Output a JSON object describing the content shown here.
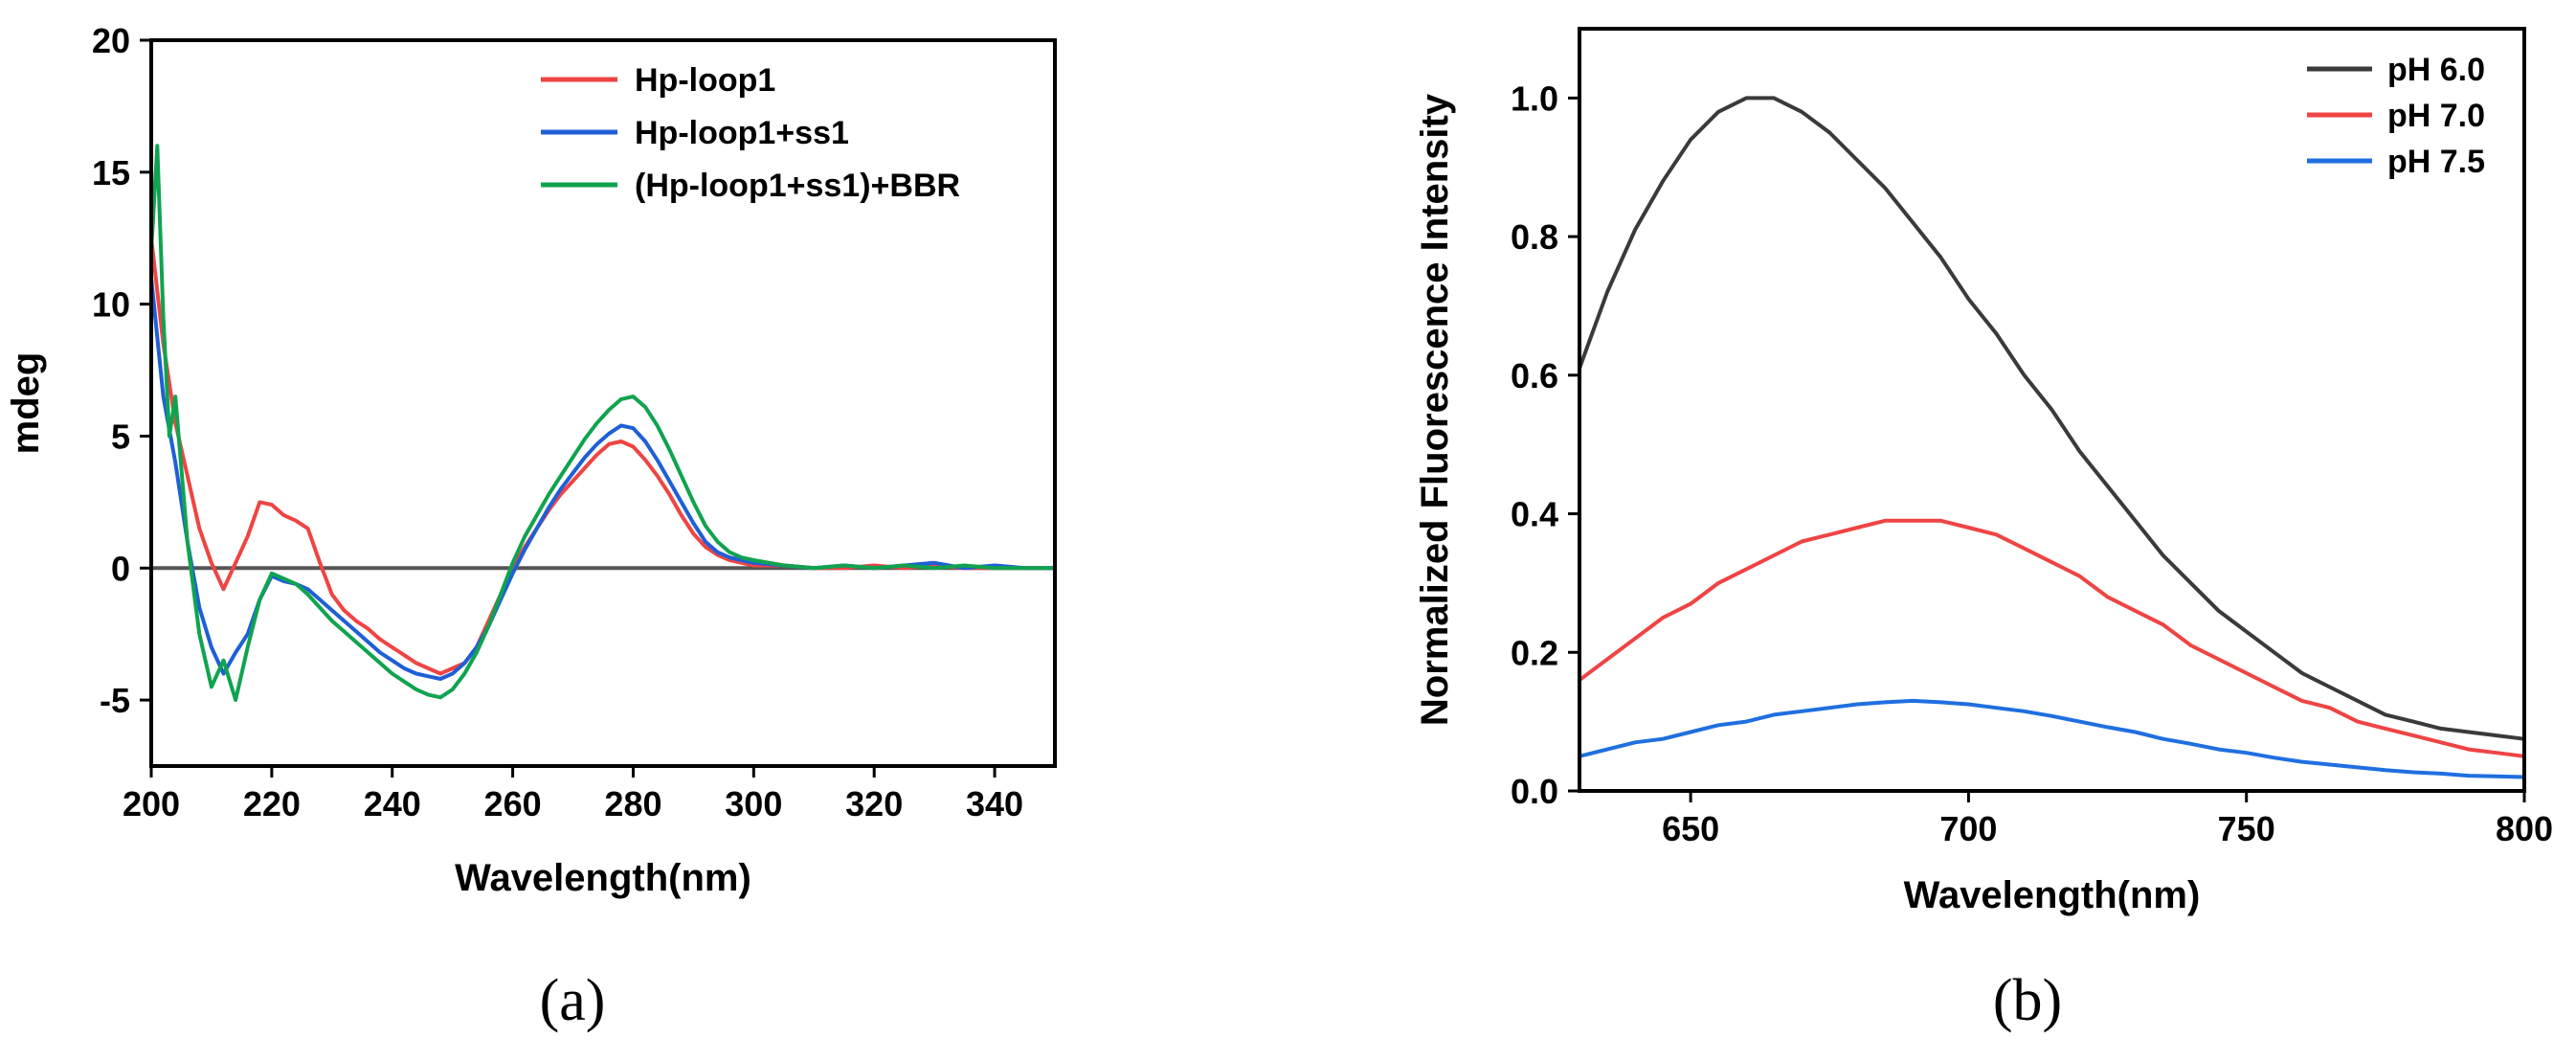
{
  "chart_data": [
    {
      "type": "line",
      "panel": "a",
      "panel_label": "(a)",
      "xlabel": "Wavelength(nm)",
      "ylabel": "mdeg",
      "xlim": [
        200,
        350
      ],
      "ylim": [
        -7.5,
        20
      ],
      "xticks": [
        200,
        220,
        240,
        260,
        280,
        300,
        320,
        340
      ],
      "yticks": [
        -5,
        0,
        5,
        10,
        15,
        20
      ],
      "zero_line": true,
      "legend_position": "top-right",
      "series": [
        {
          "name": "Hp-loop1",
          "color": "#ef4444",
          "x": [
            200,
            202,
            204,
            206,
            208,
            210,
            212,
            214,
            216,
            218,
            220,
            222,
            224,
            226,
            228,
            230,
            232,
            234,
            236,
            238,
            240,
            242,
            244,
            246,
            248,
            250,
            252,
            254,
            256,
            258,
            260,
            262,
            264,
            266,
            268,
            270,
            272,
            274,
            276,
            278,
            280,
            282,
            284,
            286,
            288,
            290,
            292,
            294,
            296,
            298,
            300,
            305,
            310,
            315,
            320,
            325,
            330,
            335,
            340,
            345,
            350
          ],
          "y": [
            12.5,
            8.5,
            5.5,
            3.5,
            1.5,
            0.2,
            -0.8,
            0.2,
            1.2,
            2.5,
            2.4,
            2.0,
            1.8,
            1.5,
            0.2,
            -1.0,
            -1.6,
            -2.0,
            -2.3,
            -2.7,
            -3.0,
            -3.3,
            -3.6,
            -3.8,
            -4.0,
            -3.8,
            -3.6,
            -3.0,
            -2.0,
            -1.0,
            0.0,
            0.8,
            1.5,
            2.2,
            2.8,
            3.3,
            3.8,
            4.3,
            4.7,
            4.8,
            4.6,
            4.1,
            3.5,
            2.8,
            2.0,
            1.3,
            0.8,
            0.5,
            0.3,
            0.2,
            0.1,
            0.1,
            0.0,
            0.0,
            0.1,
            0.0,
            0.1,
            0.0,
            0.0,
            0.0,
            0.0
          ]
        },
        {
          "name": "Hp-loop1+ss1",
          "color": "#1f5fd6",
          "x": [
            200,
            202,
            204,
            206,
            208,
            210,
            212,
            214,
            216,
            218,
            220,
            222,
            224,
            226,
            228,
            230,
            232,
            234,
            236,
            238,
            240,
            242,
            244,
            246,
            248,
            250,
            252,
            254,
            256,
            258,
            260,
            262,
            264,
            266,
            268,
            270,
            272,
            274,
            276,
            278,
            280,
            282,
            284,
            286,
            288,
            290,
            292,
            294,
            296,
            298,
            300,
            305,
            310,
            315,
            320,
            325,
            330,
            335,
            340,
            345,
            350
          ],
          "y": [
            11.0,
            6.5,
            4.0,
            1.0,
            -1.5,
            -3.0,
            -4.0,
            -3.2,
            -2.5,
            -1.2,
            -0.3,
            -0.5,
            -0.6,
            -0.8,
            -1.2,
            -1.6,
            -2.0,
            -2.4,
            -2.8,
            -3.2,
            -3.5,
            -3.8,
            -4.0,
            -4.1,
            -4.2,
            -4.0,
            -3.6,
            -3.0,
            -2.2,
            -1.2,
            -0.2,
            0.7,
            1.5,
            2.3,
            3.0,
            3.6,
            4.2,
            4.7,
            5.1,
            5.4,
            5.3,
            4.8,
            4.1,
            3.3,
            2.5,
            1.7,
            1.0,
            0.6,
            0.4,
            0.3,
            0.2,
            0.1,
            0.0,
            0.1,
            0.0,
            0.1,
            0.2,
            0.0,
            0.1,
            0.0,
            0.0
          ]
        },
        {
          "name": "(Hp-loop1+ss1)+BBR",
          "color": "#10a34f",
          "x": [
            200,
            201,
            202,
            203,
            204,
            206,
            208,
            210,
            212,
            214,
            216,
            218,
            220,
            222,
            224,
            226,
            228,
            230,
            232,
            234,
            236,
            238,
            240,
            242,
            244,
            246,
            248,
            250,
            252,
            254,
            256,
            258,
            260,
            262,
            264,
            266,
            268,
            270,
            272,
            274,
            276,
            278,
            280,
            282,
            284,
            286,
            288,
            290,
            292,
            294,
            296,
            298,
            300,
            305,
            310,
            315,
            320,
            325,
            330,
            335,
            340,
            345,
            350
          ],
          "y": [
            12.0,
            16.0,
            9.5,
            5.0,
            6.5,
            1.0,
            -2.5,
            -4.5,
            -3.5,
            -5.0,
            -3.0,
            -1.2,
            -0.2,
            -0.4,
            -0.6,
            -1.0,
            -1.5,
            -2.0,
            -2.4,
            -2.8,
            -3.2,
            -3.6,
            -4.0,
            -4.3,
            -4.6,
            -4.8,
            -4.9,
            -4.6,
            -4.0,
            -3.2,
            -2.2,
            -1.0,
            0.2,
            1.2,
            2.0,
            2.8,
            3.5,
            4.2,
            4.9,
            5.5,
            6.0,
            6.4,
            6.5,
            6.1,
            5.4,
            4.5,
            3.5,
            2.5,
            1.6,
            1.0,
            0.6,
            0.4,
            0.3,
            0.1,
            0.0,
            0.1,
            0.0,
            0.1,
            0.0,
            0.1,
            0.0,
            0.0,
            0.0
          ]
        }
      ]
    },
    {
      "type": "line",
      "panel": "b",
      "panel_label": "(b)",
      "xlabel": "Wavelength(nm)",
      "ylabel": "Normalized Fluorescence Intensity",
      "xlim": [
        630,
        800
      ],
      "ylim": [
        0,
        1.1
      ],
      "xticks": [
        650,
        700,
        750,
        800
      ],
      "yticks": [
        0.0,
        0.2,
        0.4,
        0.6,
        0.8,
        1.0
      ],
      "ytick_labels": [
        "0.0",
        "0.2",
        "0.4",
        "0.6",
        "0.8",
        "1.0"
      ],
      "legend_position": "top-right",
      "series": [
        {
          "name": "pH 6.0",
          "color": "#3a3a3a",
          "x": [
            630,
            635,
            640,
            645,
            650,
            655,
            660,
            665,
            670,
            675,
            680,
            685,
            690,
            695,
            700,
            705,
            710,
            715,
            720,
            725,
            730,
            735,
            740,
            745,
            750,
            755,
            760,
            765,
            770,
            775,
            780,
            785,
            790,
            795,
            800
          ],
          "y": [
            0.61,
            0.72,
            0.81,
            0.88,
            0.94,
            0.98,
            1.0,
            1.0,
            0.98,
            0.95,
            0.91,
            0.87,
            0.82,
            0.77,
            0.71,
            0.66,
            0.6,
            0.55,
            0.49,
            0.44,
            0.39,
            0.34,
            0.3,
            0.26,
            0.23,
            0.2,
            0.17,
            0.15,
            0.13,
            0.11,
            0.1,
            0.09,
            0.085,
            0.08,
            0.075
          ]
        },
        {
          "name": "pH 7.0",
          "color": "#ef4444",
          "x": [
            630,
            635,
            640,
            645,
            650,
            655,
            660,
            665,
            670,
            675,
            680,
            685,
            690,
            695,
            700,
            705,
            710,
            715,
            720,
            725,
            730,
            735,
            740,
            745,
            750,
            755,
            760,
            765,
            770,
            775,
            780,
            785,
            790,
            795,
            800
          ],
          "y": [
            0.16,
            0.19,
            0.22,
            0.25,
            0.27,
            0.3,
            0.32,
            0.34,
            0.36,
            0.37,
            0.38,
            0.39,
            0.39,
            0.39,
            0.38,
            0.37,
            0.35,
            0.33,
            0.31,
            0.28,
            0.26,
            0.24,
            0.21,
            0.19,
            0.17,
            0.15,
            0.13,
            0.12,
            0.1,
            0.09,
            0.08,
            0.07,
            0.06,
            0.055,
            0.05
          ]
        },
        {
          "name": "pH 7.5",
          "color": "#1f6fe0",
          "x": [
            630,
            635,
            640,
            645,
            650,
            655,
            660,
            665,
            670,
            675,
            680,
            685,
            690,
            695,
            700,
            705,
            710,
            715,
            720,
            725,
            730,
            735,
            740,
            745,
            750,
            755,
            760,
            765,
            770,
            775,
            780,
            785,
            790,
            795,
            800
          ],
          "y": [
            0.05,
            0.06,
            0.07,
            0.075,
            0.085,
            0.095,
            0.1,
            0.11,
            0.115,
            0.12,
            0.125,
            0.128,
            0.13,
            0.128,
            0.125,
            0.12,
            0.115,
            0.108,
            0.1,
            0.092,
            0.085,
            0.075,
            0.068,
            0.06,
            0.055,
            0.048,
            0.042,
            0.038,
            0.034,
            0.03,
            0.027,
            0.025,
            0.022,
            0.021,
            0.02
          ]
        }
      ]
    }
  ]
}
